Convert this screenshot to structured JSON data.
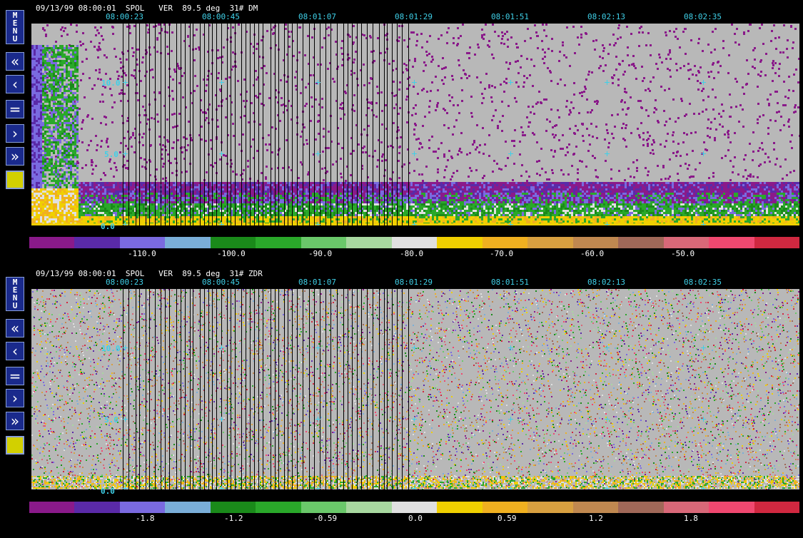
{
  "panels": [
    {
      "id": "dm",
      "header": "09/13/99 08:00:01  SPOL   VER  89.5 deg  31# DM",
      "menu_letters": [
        "M",
        "E",
        "N",
        "U"
      ],
      "time_labels": [
        "08:00:23",
        "08:00:45",
        "08:01:07",
        "08:01:29",
        "08:01:51",
        "08:02:13",
        "08:02:35"
      ],
      "y_labels": [
        "10.0",
        "5.0",
        "0.0"
      ],
      "colorbar_labels": [
        "-110.0",
        "-100.0",
        "-90.0",
        "-80.0",
        "-70.0",
        "-60.0",
        "-50.0"
      ]
    },
    {
      "id": "zdr",
      "header": "09/13/99 08:00:01  SPOL   VER  89.5 deg  31# ZDR",
      "menu_letters": [
        "M",
        "E",
        "N",
        "U"
      ],
      "time_labels": [
        "08:00:23",
        "08:00:45",
        "08:01:07",
        "08:01:29",
        "08:01:51",
        "08:02:13",
        "08:02:35"
      ],
      "y_labels": [
        "10.0",
        "5.0",
        "0.0"
      ],
      "colorbar_labels": [
        "-1.8",
        "-1.2",
        "-0.59",
        "0.0",
        "0.59",
        "1.2",
        "1.8"
      ]
    }
  ],
  "buttons": {
    "menu": "MENU",
    "fast_back": "«",
    "back": "‹",
    "equal": "=",
    "forward": "›",
    "fast_forward": "»"
  },
  "colors": {
    "colorbar": [
      "#8a1a8a",
      "#5a2aa8",
      "#7a6ae0",
      "#7aaed8",
      "#1a8a1a",
      "#2aa82a",
      "#6ac86a",
      "#a8d8a0",
      "#e0e0e0",
      "#f0d000",
      "#f0b020",
      "#d8a040",
      "#c08850",
      "#a06858",
      "#d86878",
      "#f04870",
      "#d02840"
    ],
    "plot_background": "#b8b8b8",
    "tick_color": "#3fd0e8",
    "accent_swatch": "#d2d000"
  }
}
